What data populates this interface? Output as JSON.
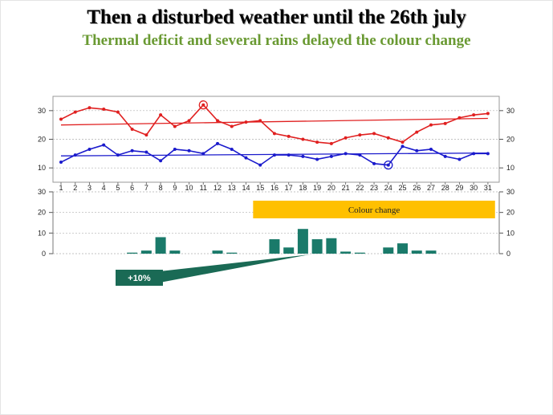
{
  "slide": {
    "title": "Then a disturbed weather until the 26th july",
    "subtitle": "Thermal deficit and several rains delayed the colour change"
  },
  "colors": {
    "tmax": "#e02020",
    "tmin": "#1a1acc",
    "rain_bar": "#1a7a6a",
    "annotation_bg": "#1a6a55",
    "highlight_band": "#ffc000",
    "grid": "#b0b0b0"
  },
  "chart_data": [
    {
      "type": "line",
      "title": "",
      "xlabel": "",
      "ylabel": "",
      "x": [
        1,
        2,
        3,
        4,
        5,
        6,
        7,
        8,
        9,
        10,
        11,
        12,
        13,
        14,
        15,
        16,
        17,
        18,
        19,
        20,
        21,
        22,
        23,
        24,
        25,
        26,
        27,
        28,
        29,
        30,
        31
      ],
      "ylim": [
        5,
        35
      ],
      "yticks": [
        10,
        20,
        30
      ],
      "grid": true,
      "series": [
        {
          "name": "",
          "color": "#e02020",
          "values": [
            27,
            29.5,
            31,
            30.5,
            29.5,
            23.5,
            21.5,
            28.5,
            24.5,
            26.5,
            32,
            26.5,
            24.5,
            26,
            26.5,
            22,
            21,
            20,
            19,
            18.5,
            20.5,
            21.5,
            22,
            20.5,
            19,
            22.5,
            25,
            25.5,
            27.5,
            28.5,
            29
          ],
          "trend": [
            25,
            27.3
          ],
          "circled_x": 11
        },
        {
          "name": "",
          "color": "#1a1acc",
          "values": [
            12,
            14.5,
            16.5,
            18,
            14.5,
            16,
            15.5,
            12.5,
            16.5,
            16,
            15,
            18.5,
            16.5,
            13.5,
            11,
            14.5,
            14.5,
            14,
            13,
            14,
            15,
            14.5,
            11.5,
            11,
            17.5,
            16,
            16.5,
            14,
            13,
            15,
            15
          ],
          "trend": [
            14.2,
            15.2
          ],
          "circled_x": 24
        }
      ]
    },
    {
      "type": "bar",
      "title": "",
      "xlabel": "",
      "ylabel": "",
      "x": [
        1,
        2,
        3,
        4,
        5,
        6,
        7,
        8,
        9,
        10,
        11,
        12,
        13,
        14,
        15,
        16,
        17,
        18,
        19,
        20,
        21,
        22,
        23,
        24,
        25,
        26,
        27,
        28,
        29,
        30,
        31
      ],
      "values": [
        0,
        0,
        0,
        0,
        0,
        0.5,
        1.5,
        8,
        1.5,
        0,
        0,
        1.5,
        0.5,
        0,
        0,
        7,
        3,
        12,
        7,
        7.5,
        1,
        0.5,
        0,
        3,
        5,
        1.5,
        1.5,
        0,
        0,
        0,
        0
      ],
      "ylim": [
        0,
        30
      ],
      "yticks": [
        0,
        10,
        20,
        30
      ],
      "grid": true,
      "annotations": {
        "band_label": "Colour change",
        "band_from_x": 14.5,
        "band_to_x": 31.5,
        "callout_label": "+10%",
        "callout_target_x": 18.5
      }
    }
  ]
}
